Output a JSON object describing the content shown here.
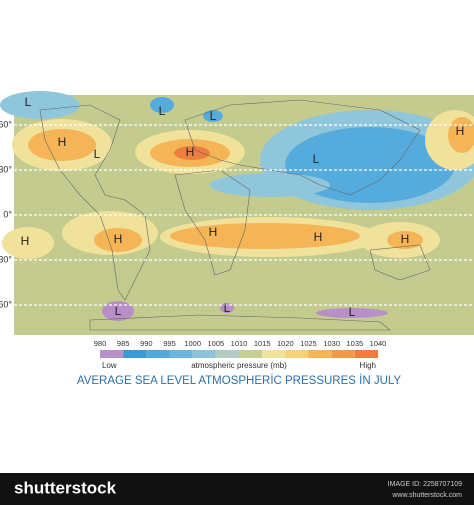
{
  "map": {
    "title": "AVERAGE SEA LEVEL ATMOSPHERİC PRESSURES İN JULY",
    "latitude_labels": [
      "60°",
      "30°",
      "0°",
      "30°",
      "60°"
    ],
    "markers": [
      "L",
      "L",
      "L",
      "L",
      "H",
      "H",
      "L",
      "H",
      "H",
      "H",
      "H",
      "H",
      "H",
      "L",
      "L",
      "L"
    ],
    "legend": {
      "ticks": [
        980,
        985,
        990,
        995,
        1000,
        1005,
        1010,
        1015,
        1020,
        1025,
        1030,
        1035,
        1040
      ],
      "low_label": "Low",
      "unit_label": "atmospheric pressure (mb)",
      "high_label": "High"
    },
    "footer": {
      "brand": "shutterstock",
      "image_id": "IMAGE ID: 2258707109",
      "site": "www.shutterstock.com"
    }
  }
}
